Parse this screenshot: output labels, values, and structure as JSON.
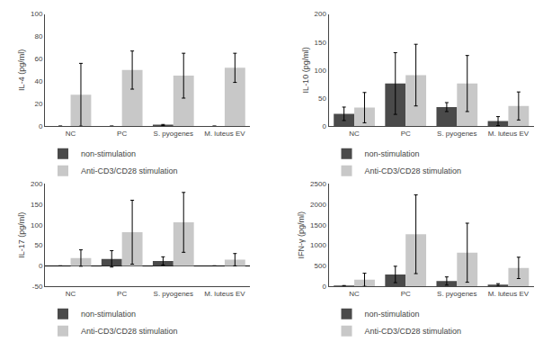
{
  "chart_data": [
    {
      "type": "bar",
      "ylabel": "IL-4 (pg/ml)",
      "categories": [
        "NC",
        "PC",
        "S. pyogenes",
        "M. luteus EV"
      ],
      "series": [
        {
          "name": "non-stimulation",
          "color": "#4a4a4a",
          "values": [
            0,
            0,
            1,
            0
          ],
          "error": [
            0,
            0,
            0.5,
            0
          ]
        },
        {
          "name": "Anti-CD3/CD28 stimulation",
          "color": "#c8c8c8",
          "values": [
            28,
            50,
            45,
            52
          ],
          "error": [
            28,
            17,
            20,
            13
          ]
        }
      ],
      "ylim": [
        0,
        100
      ],
      "yticks": [
        0,
        20,
        40,
        60,
        80,
        100
      ],
      "grid": false,
      "legend": "bottom"
    },
    {
      "type": "bar",
      "ylabel": "IL-10 (pg/ml)",
      "categories": [
        "NC",
        "PC",
        "S. pyogenes",
        "M. luteus EV"
      ],
      "series": [
        {
          "name": "non-stimulation",
          "color": "#4a4a4a",
          "values": [
            22,
            76,
            34,
            9
          ],
          "error": [
            12,
            55,
            8,
            8
          ]
        },
        {
          "name": "Anti-CD3/CD28 stimulation",
          "color": "#c8c8c8",
          "values": [
            33,
            91,
            76,
            36
          ],
          "error": [
            27,
            55,
            50,
            25
          ]
        }
      ],
      "ylim": [
        0,
        200
      ],
      "yticks": [
        0,
        50,
        100,
        150,
        200
      ],
      "grid": false,
      "legend": "bottom"
    },
    {
      "type": "bar",
      "ylabel": "IL-17 (pg/ml)",
      "categories": [
        "NC",
        "PC",
        "S. pyogenes",
        "M. luteus EV"
      ],
      "series": [
        {
          "name": "non-stimulation",
          "color": "#4a4a4a",
          "values": [
            0,
            17,
            12,
            0
          ],
          "error": [
            0,
            20,
            10,
            0
          ]
        },
        {
          "name": "Anti-CD3/CD28 stimulation",
          "color": "#c8c8c8",
          "values": [
            19,
            82,
            106,
            15
          ],
          "error": [
            20,
            78,
            73,
            15
          ]
        }
      ],
      "ylim": [
        -50,
        200
      ],
      "yticks": [
        -50,
        0,
        50,
        100,
        150,
        200
      ],
      "grid": false,
      "legend": "bottom"
    },
    {
      "type": "bar",
      "ylabel": "IFN-γ (pg/ml)",
      "categories": [
        "NC",
        "PC",
        "S. pyogenes",
        "M. luteus EV"
      ],
      "series": [
        {
          "name": "non-stimulation",
          "color": "#4a4a4a",
          "values": [
            10,
            290,
            130,
            35
          ],
          "error": [
            10,
            200,
            100,
            30
          ]
        },
        {
          "name": "Anti-CD3/CD28 stimulation",
          "color": "#c8c8c8",
          "values": [
            160,
            1270,
            820,
            450
          ],
          "error": [
            160,
            960,
            720,
            260
          ]
        }
      ],
      "ylim": [
        0,
        2500
      ],
      "yticks": [
        0,
        500,
        1000,
        1500,
        2000,
        2500
      ],
      "grid": false,
      "legend": "bottom"
    }
  ]
}
